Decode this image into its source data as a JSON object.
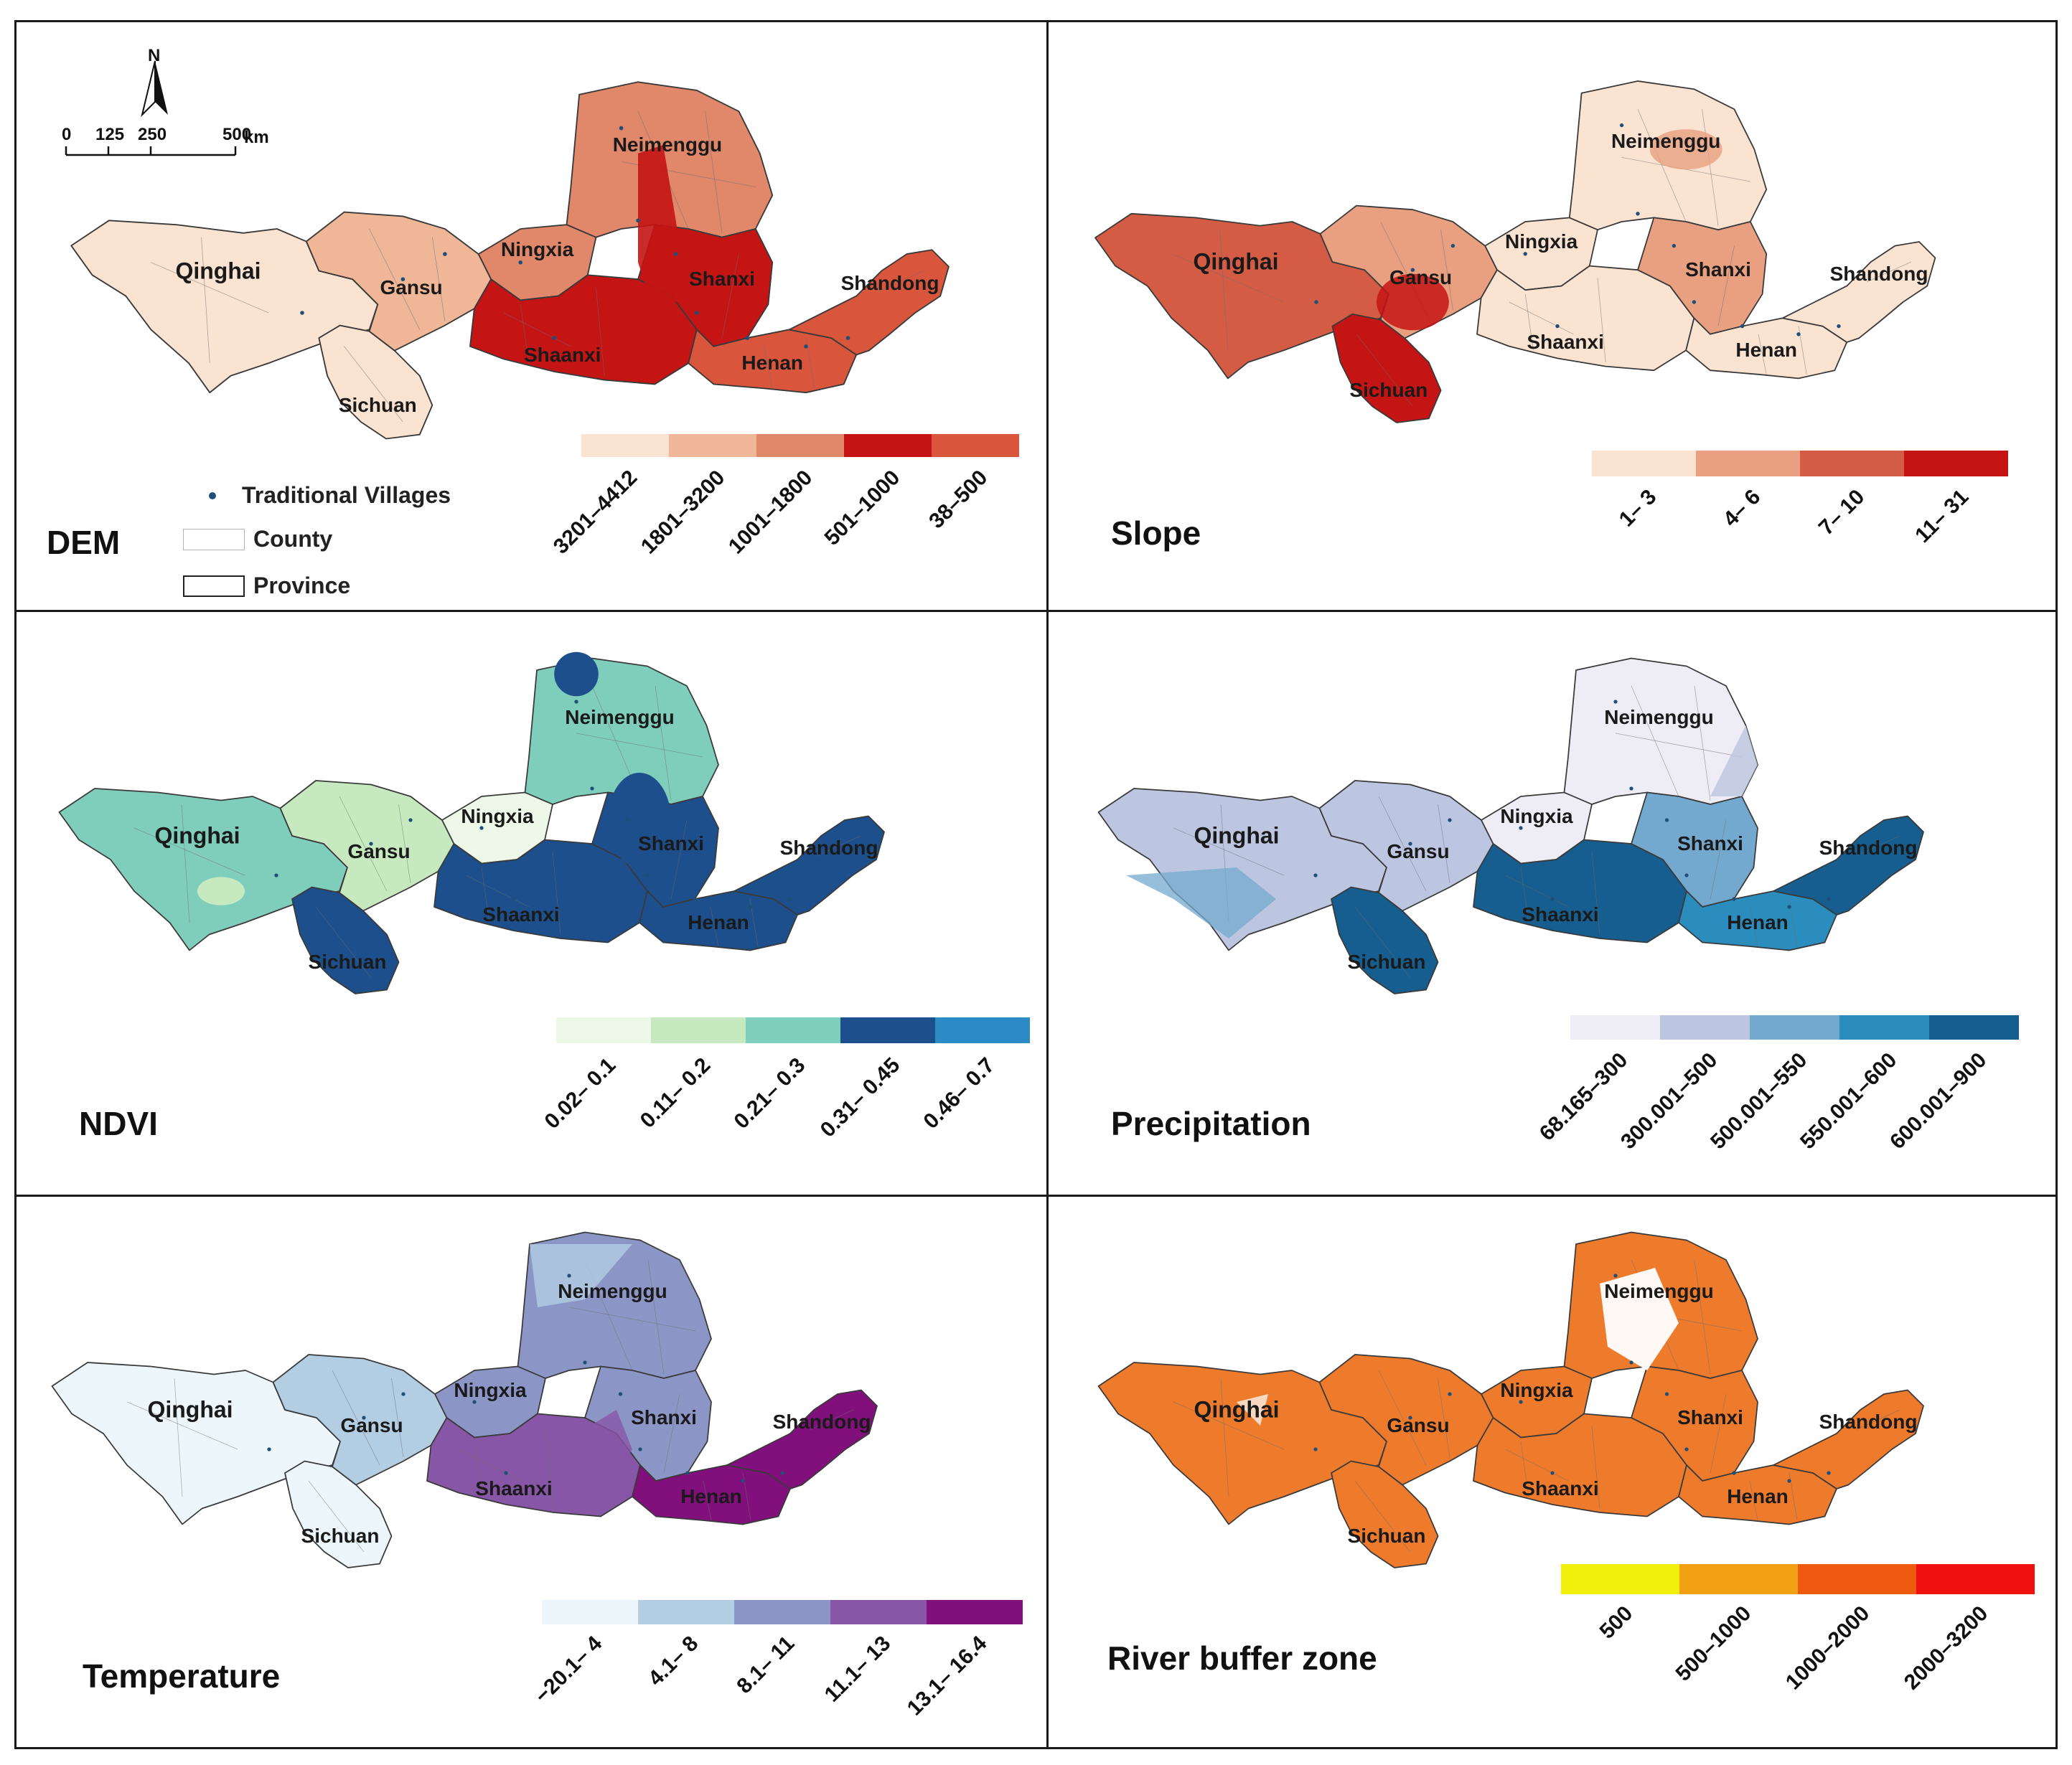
{
  "north_arrow": {
    "label": "N"
  },
  "scale_bar": {
    "ticks": [
      "0",
      "125",
      "250",
      "500"
    ],
    "unit": "km"
  },
  "key": {
    "villages": "Traditional Villages",
    "county": "County",
    "province": "Province"
  },
  "colors": {
    "outline": "#3a3a3a",
    "village": "#1f4e79"
  },
  "icons": {
    "north": "north-arrow-icon",
    "village": "village-dot-icon"
  },
  "panels": [
    {
      "title": "DEM",
      "legend": [
        {
          "label": "3201–4412",
          "color": "#fbe3d2"
        },
        {
          "label": "1801–3200",
          "color": "#efb697"
        },
        {
          "label": "1001–1800",
          "color": "#e1876a"
        },
        {
          "label": "501–1000",
          "color": "#c41414"
        },
        {
          "label": "38–500",
          "color": "#d9563c"
        }
      ],
      "provinces": [
        {
          "name": "Qinghai",
          "color": "#fbe3d2"
        },
        {
          "name": "Sichuan",
          "color": "#fbe3d2"
        },
        {
          "name": "Gansu",
          "color": "#efb697"
        },
        {
          "name": "Ningxia",
          "color": "#e1876a"
        },
        {
          "name": "Neimenggu",
          "color": "#e1876a"
        },
        {
          "name": "Shaanxi",
          "color": "#c41414"
        },
        {
          "name": "Shanxi",
          "color": "#c41414"
        },
        {
          "name": "Henan",
          "color": "#d9563c"
        },
        {
          "name": "Shandong",
          "color": "#d9563c"
        }
      ]
    },
    {
      "title": "Slope",
      "legend": [
        {
          "label": "1– 3",
          "color": "#fbe3d2"
        },
        {
          "label": "4– 6",
          "color": "#e8a080"
        },
        {
          "label": "7– 10",
          "color": "#d45c44"
        },
        {
          "label": "11– 31",
          "color": "#c41414"
        }
      ],
      "provinces": [
        {
          "name": "Qinghai",
          "color": "#d45c44"
        },
        {
          "name": "Sichuan",
          "color": "#c41414"
        },
        {
          "name": "Gansu",
          "color": "#e8a080"
        },
        {
          "name": "Ningxia",
          "color": "#fbe3d2"
        },
        {
          "name": "Neimenggu",
          "color": "#fbe3d2"
        },
        {
          "name": "Shaanxi",
          "color": "#fbe3d2"
        },
        {
          "name": "Shanxi",
          "color": "#e8a080"
        },
        {
          "name": "Henan",
          "color": "#fbe3d2"
        },
        {
          "name": "Shandong",
          "color": "#fbe3d2"
        }
      ]
    },
    {
      "title": "NDVI",
      "legend": [
        {
          "label": "0.02– 0.1",
          "color": "#edf8e9"
        },
        {
          "label": "0.11– 0.2",
          "color": "#c7e9c0"
        },
        {
          "label": "0.21– 0.3",
          "color": "#7fcdbb"
        },
        {
          "label": "0.31– 0.45",
          "color": "#1c4f8c"
        },
        {
          "label": "0.46– 0.7",
          "color": "#2c8bc4"
        }
      ],
      "provinces": [
        {
          "name": "Qinghai",
          "color": "#7fcdbb"
        },
        {
          "name": "Sichuan",
          "color": "#1c4f8c"
        },
        {
          "name": "Gansu",
          "color": "#c7e9c0"
        },
        {
          "name": "Ningxia",
          "color": "#edf8e9"
        },
        {
          "name": "Neimenggu",
          "color": "#7fcdbb"
        },
        {
          "name": "Shaanxi",
          "color": "#1c4f8c"
        },
        {
          "name": "Shanxi",
          "color": "#1c4f8c"
        },
        {
          "name": "Henan",
          "color": "#1c4f8c"
        },
        {
          "name": "Shandong",
          "color": "#1c4f8c"
        }
      ]
    },
    {
      "title": "Precipitation",
      "legend": [
        {
          "label": "68.165–300",
          "color": "#eeedf5"
        },
        {
          "label": "300.001–500",
          "color": "#bcc6e0"
        },
        {
          "label": "500.001–550",
          "color": "#74a9cf"
        },
        {
          "label": "550.001–600",
          "color": "#2b8cbe"
        },
        {
          "label": "600.001–900",
          "color": "#155e8f"
        }
      ],
      "provinces": [
        {
          "name": "Qinghai",
          "color": "#bcc6e0"
        },
        {
          "name": "Sichuan",
          "color": "#155e8f"
        },
        {
          "name": "Gansu",
          "color": "#bcc6e0"
        },
        {
          "name": "Ningxia",
          "color": "#eeedf5"
        },
        {
          "name": "Neimenggu",
          "color": "#eeedf5"
        },
        {
          "name": "Shaanxi",
          "color": "#155e8f"
        },
        {
          "name": "Shanxi",
          "color": "#74a9cf"
        },
        {
          "name": "Henan",
          "color": "#2b8cbe"
        },
        {
          "name": "Shandong",
          "color": "#155e8f"
        }
      ]
    },
    {
      "title": "Temperature",
      "legend": [
        {
          "label": "−20.1– 4",
          "color": "#edf7fb"
        },
        {
          "label": "4.1– 8",
          "color": "#b3cde3"
        },
        {
          "label": "8.1– 11",
          "color": "#8c96c6"
        },
        {
          "label": "11.1– 13",
          "color": "#8856a7"
        },
        {
          "label": "13.1– 16.4",
          "color": "#810f7c"
        }
      ],
      "provinces": [
        {
          "name": "Qinghai",
          "color": "#edf7fb"
        },
        {
          "name": "Sichuan",
          "color": "#edf7fb"
        },
        {
          "name": "Gansu",
          "color": "#b3cde3"
        },
        {
          "name": "Ningxia",
          "color": "#8c96c6"
        },
        {
          "name": "Neimenggu",
          "color": "#8c96c6"
        },
        {
          "name": "Shaanxi",
          "color": "#8856a7"
        },
        {
          "name": "Shanxi",
          "color": "#8c96c6"
        },
        {
          "name": "Henan",
          "color": "#810f7c"
        },
        {
          "name": "Shandong",
          "color": "#810f7c"
        }
      ]
    },
    {
      "title": "River buffer zone",
      "legend": [
        {
          "label": "500",
          "color": "#f2ef0c"
        },
        {
          "label": "500–1000",
          "color": "#f0a012"
        },
        {
          "label": "1000–2000",
          "color": "#ee5a0f"
        },
        {
          "label": "2000–3200",
          "color": "#ef1010"
        }
      ],
      "provinces": [
        {
          "name": "Qinghai",
          "color": "#ee7a2c"
        },
        {
          "name": "Sichuan",
          "color": "#ee7a2c"
        },
        {
          "name": "Gansu",
          "color": "#ee7a2c"
        },
        {
          "name": "Ningxia",
          "color": "#ee7a2c"
        },
        {
          "name": "Neimenggu",
          "color": "#ee7a2c"
        },
        {
          "name": "Shaanxi",
          "color": "#ee7a2c"
        },
        {
          "name": "Shanxi",
          "color": "#ee7a2c"
        },
        {
          "name": "Henan",
          "color": "#ee7a2c"
        },
        {
          "name": "Shandong",
          "color": "#ee7a2c"
        }
      ]
    }
  ]
}
